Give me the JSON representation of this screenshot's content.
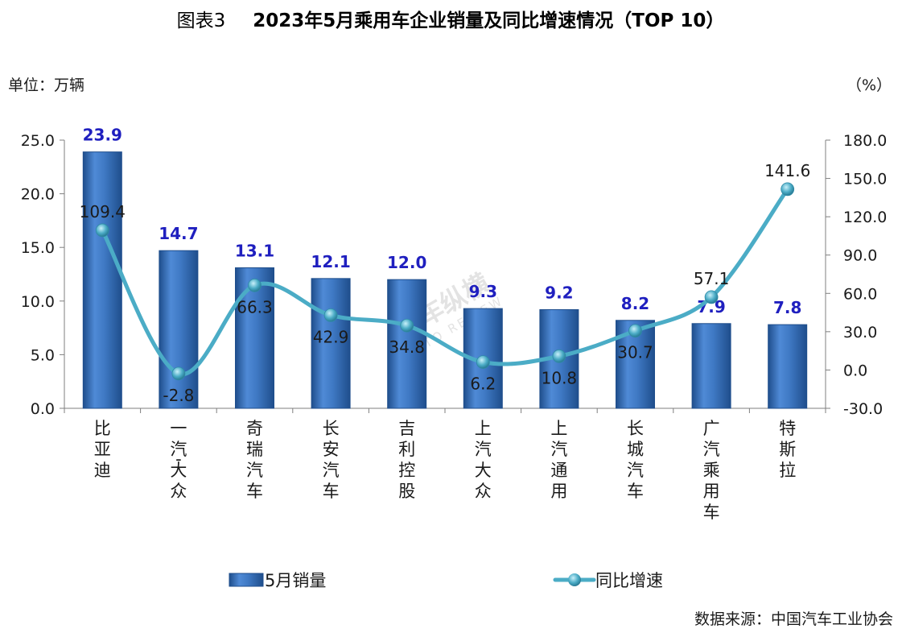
{
  "page": {
    "title_prefix": "图表3",
    "title_main": "2023年5月乘用车企业销量及同比增速情况（TOP 10）",
    "unit_left": "单位：万辆",
    "unit_right": "（%）",
    "source": "数据来源：中国汽车工业协会",
    "watermark_cn": "汽车纵横",
    "watermark_en": "AUTO REVIEW"
  },
  "colors": {
    "bar": "#3f79c4",
    "bar_dark": "#1f4e8c",
    "line": "#4bacc6",
    "bar_label": "#1f1fbf"
  },
  "chart_data": {
    "type": "bar",
    "categories": [
      "比亚迪",
      "一汽-大众",
      "奇瑞汽车",
      "长安汽车",
      "吉利控股",
      "上汽大众",
      "上汽通用",
      "长城汽车",
      "广汽乘用车",
      "特斯拉"
    ],
    "series": [
      {
        "name": "5月销量",
        "type": "bar",
        "axis": "left",
        "values": [
          23.9,
          14.7,
          13.1,
          12.1,
          12.0,
          9.3,
          9.2,
          8.2,
          7.9,
          7.8
        ]
      },
      {
        "name": "同比增速",
        "type": "line",
        "axis": "right",
        "values": [
          109.4,
          -2.8,
          66.3,
          42.9,
          34.8,
          6.2,
          10.8,
          30.7,
          57.1,
          141.6
        ]
      }
    ],
    "y_left": {
      "lim": [
        0,
        25
      ],
      "ticks": [
        "0.0",
        "5.0",
        "10.0",
        "15.0",
        "20.0",
        "25.0"
      ]
    },
    "y_right": {
      "lim": [
        -30,
        180
      ],
      "ticks": [
        "-30.0",
        "0.0",
        "30.0",
        "60.0",
        "90.0",
        "120.0",
        "150.0",
        "180.0"
      ]
    },
    "legend_position": "bottom",
    "grid": false
  }
}
